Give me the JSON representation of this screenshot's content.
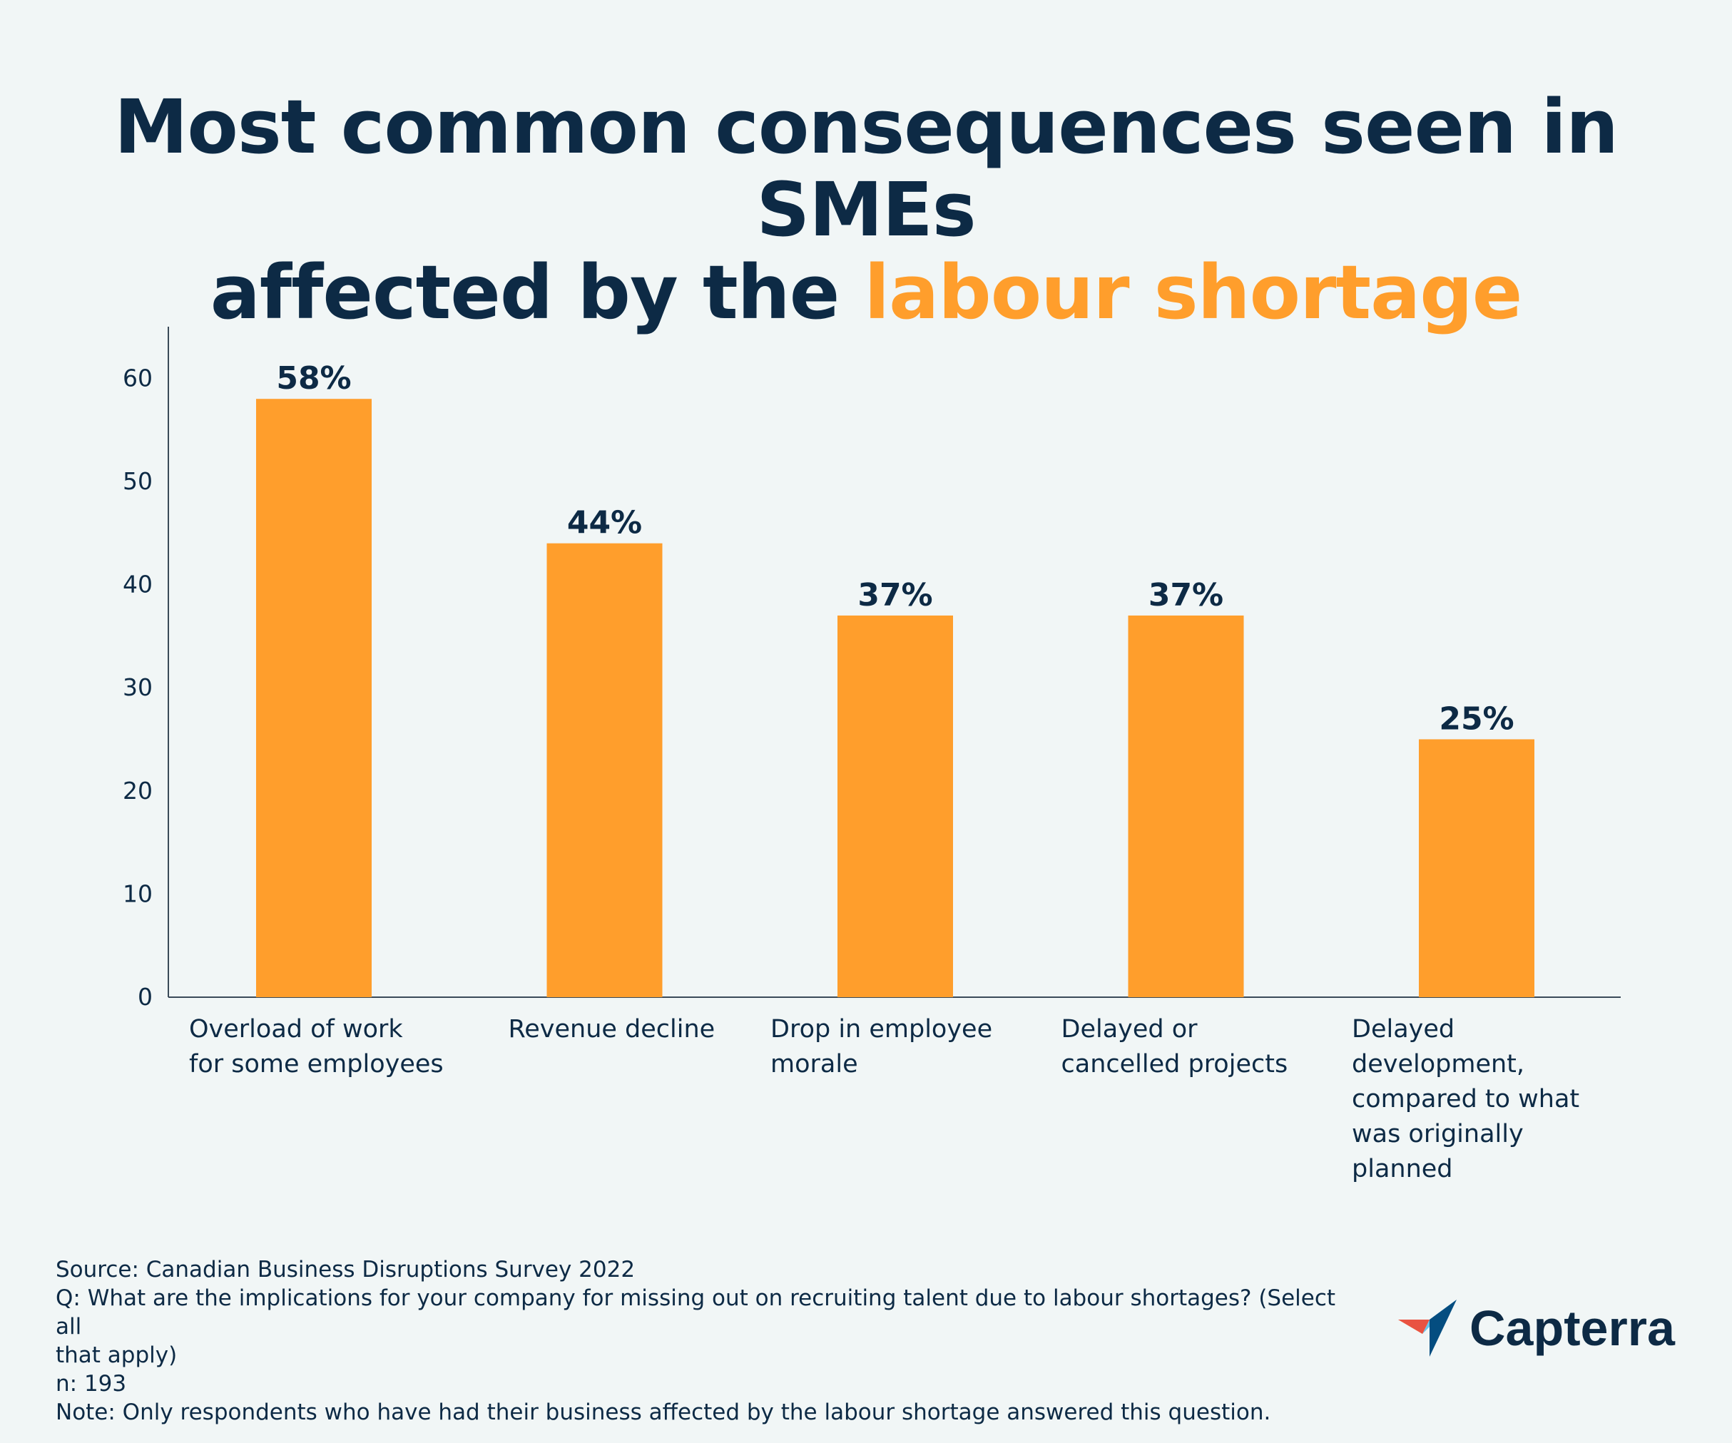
{
  "title": {
    "line1": "Most common consequences seen in SMEs",
    "line2_prefix": "affected by the",
    "line2_accent": "labour shortage"
  },
  "colors": {
    "bar": "#ff9e2c",
    "text": "#0d2a45",
    "background": "#f1f6f6",
    "accent": "#ff9e2c"
  },
  "chart_data": {
    "type": "bar",
    "title": "Most common consequences seen in SMEs affected by the labour shortage",
    "categories": [
      [
        "Overload of work",
        "for some employees"
      ],
      [
        "Revenue decline"
      ],
      [
        "Drop in employee",
        "morale"
      ],
      [
        "Delayed or",
        "cancelled projects"
      ],
      [
        "Delayed",
        "development,",
        "compared to what",
        "was originally",
        "planned"
      ]
    ],
    "values": [
      58,
      44,
      37,
      37,
      25
    ],
    "data_labels": [
      "58%",
      "44%",
      "37%",
      "37%",
      "25%"
    ],
    "yticks": [
      0,
      10,
      20,
      30,
      40,
      50,
      60
    ],
    "ylim": [
      0,
      65
    ],
    "xlabel": "",
    "ylabel": "",
    "grid": false
  },
  "footer": {
    "source": "Source: Canadian Business Disruptions Survey 2022",
    "question_line1": "Q: What are the implications for your company for missing out on recruiting talent due to labour shortages? (Select all",
    "question_line2": "that apply)",
    "n": "n: 193",
    "note": "Note: Only respondents who have had their business affected by the labour shortage answered this question."
  },
  "logo": {
    "text": "Capterra",
    "icon": "capterra-arrow-icon"
  }
}
